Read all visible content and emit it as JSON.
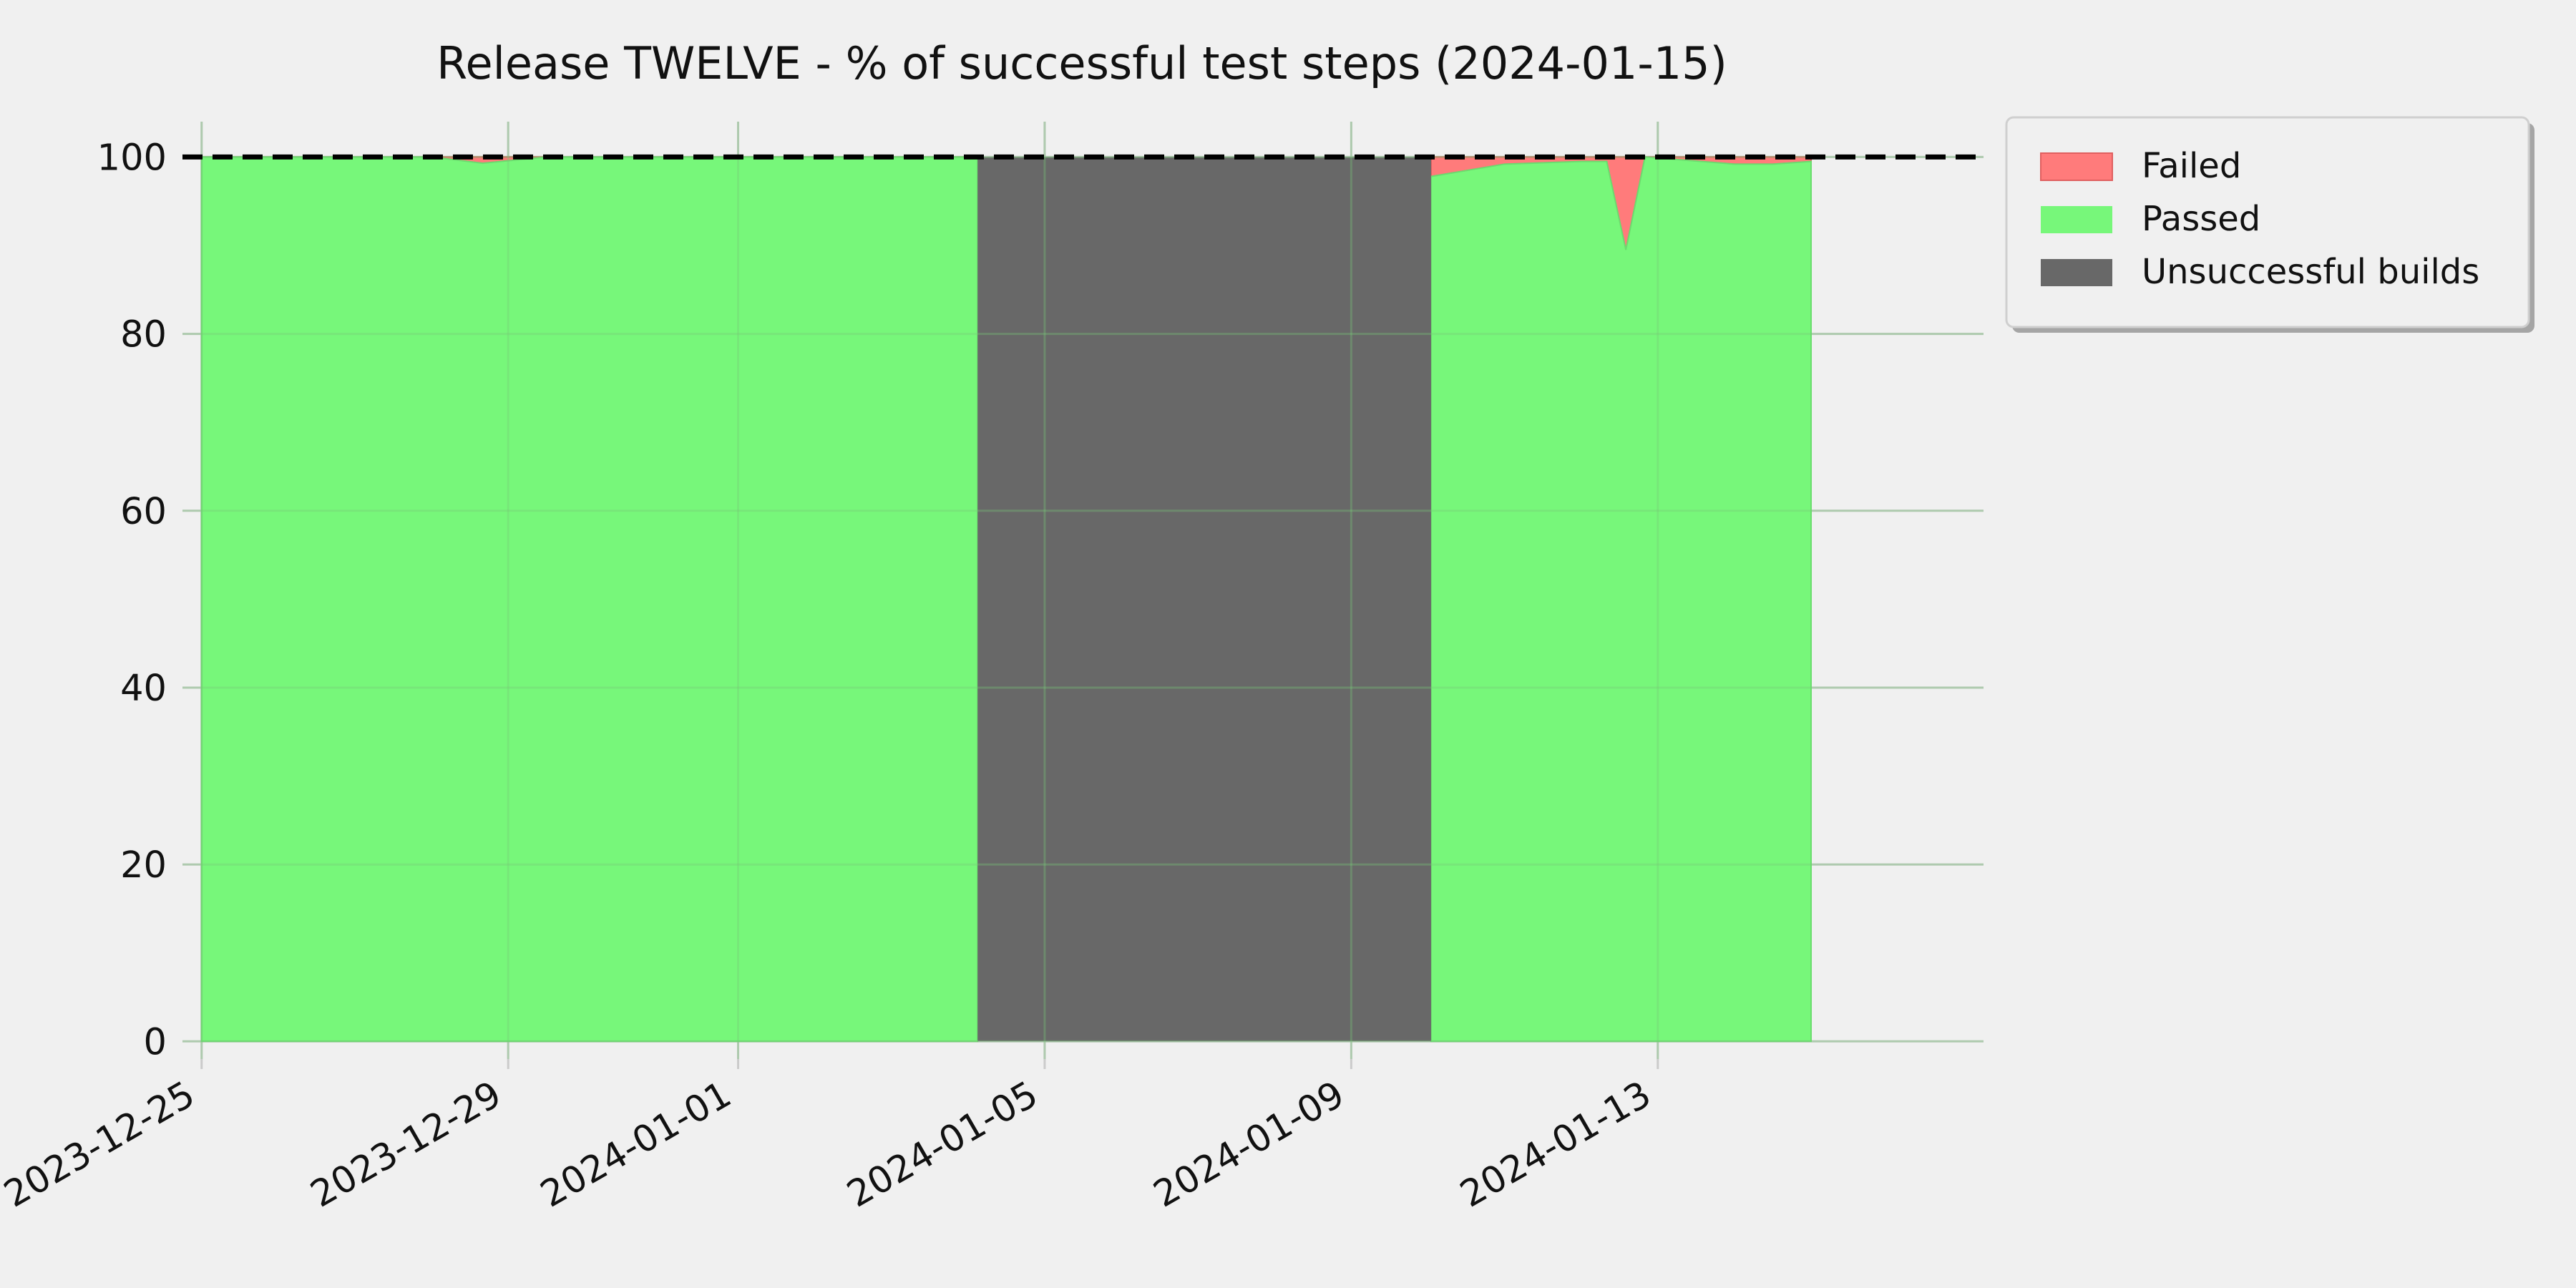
{
  "chart_data": {
    "type": "area",
    "title": "Release TWELVE - % of successful test steps (2024-01-15)",
    "xlabel": "",
    "ylabel": "",
    "x_axis_type": "date",
    "xlim": [
      "2023-12-24T18:00",
      "2024-01-17T06:00"
    ],
    "ylim": [
      -2,
      104
    ],
    "x_ticks": [
      "2023-12-25",
      "2023-12-29",
      "2024-01-01",
      "2024-01-05",
      "2024-01-09",
      "2024-01-13"
    ],
    "y_ticks": [
      0,
      20,
      40,
      60,
      80,
      100
    ],
    "grid": true,
    "reference_line": {
      "y": 100,
      "style": "dashed",
      "color": "#000000"
    },
    "legend": {
      "position": "outside-top-right",
      "entries": [
        "Failed",
        "Passed",
        "Unsuccessful builds"
      ]
    },
    "colors": {
      "Failed": "#ff7b7b",
      "Passed": "#77f77a",
      "Unsuccessful builds": "#686868",
      "background": "#f0f0f0"
    },
    "series": [
      {
        "name": "Passed",
        "x": [
          "2023-12-25T00:00",
          "2023-12-28T00:00",
          "2023-12-28T16:00",
          "2023-12-29T12:00",
          "2024-01-04T03:00",
          "2024-01-10T01:00",
          "2024-01-11T00:00",
          "2024-01-12T00:00",
          "2024-01-12T08:00",
          "2024-01-12T14:00",
          "2024-01-12T20:00",
          "2024-01-14T00:00",
          "2024-01-14T12:00",
          "2024-01-15T00:00"
        ],
        "y": [
          100,
          100,
          99.3,
          100,
          100,
          97.8,
          99.2,
          99.5,
          99.5,
          89.5,
          100,
          99.2,
          99.2,
          99.5
        ]
      },
      {
        "name": "Failed",
        "x": [
          "2023-12-25T00:00",
          "2023-12-28T00:00",
          "2023-12-28T16:00",
          "2023-12-29T12:00",
          "2024-01-04T03:00",
          "2024-01-10T01:00",
          "2024-01-11T00:00",
          "2024-01-12T00:00",
          "2024-01-12T08:00",
          "2024-01-12T14:00",
          "2024-01-12T20:00",
          "2024-01-14T00:00",
          "2024-01-14T12:00",
          "2024-01-15T00:00"
        ],
        "y": [
          0,
          0,
          0.7,
          0,
          0,
          2.2,
          0.8,
          0.5,
          0.5,
          10.5,
          0,
          0.8,
          0.8,
          0.5
        ]
      },
      {
        "name": "Unsuccessful builds",
        "x": [
          "2024-01-04T03:00",
          "2024-01-10T01:00"
        ],
        "y": [
          100,
          100
        ]
      }
    ]
  }
}
